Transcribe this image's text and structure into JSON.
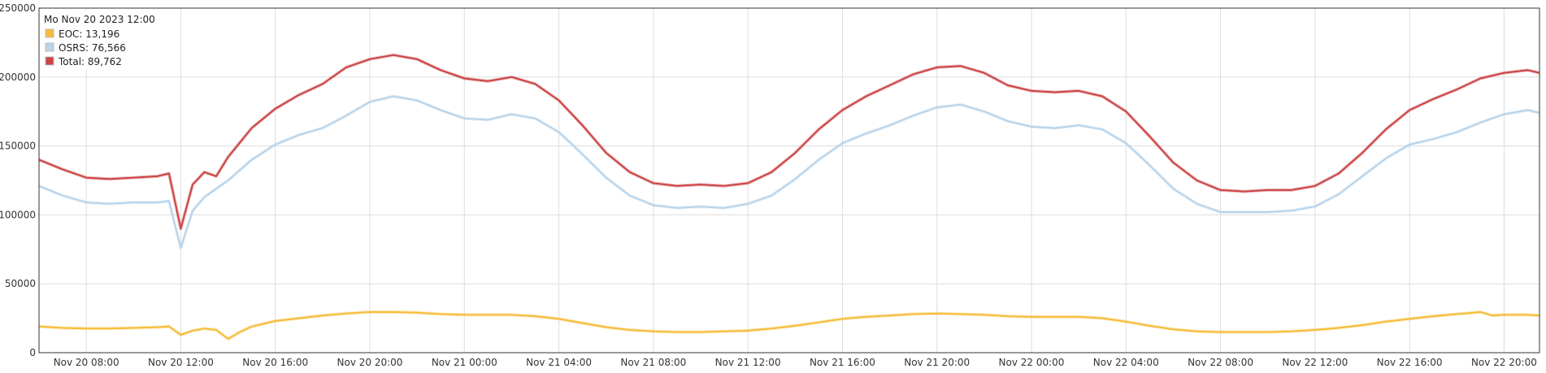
{
  "chart_data": {
    "type": "line",
    "title": "",
    "xlabel": "",
    "ylabel": "",
    "x_range": [
      "2023-11-20T06:00",
      "2023-11-22T21:30"
    ],
    "ylim": [
      0,
      250000
    ],
    "y_ticks": [
      0,
      50000,
      100000,
      150000,
      200000,
      250000
    ],
    "y_tick_labels": [
      "0",
      "50000",
      "100000",
      "150000",
      "200000",
      "250000"
    ],
    "x_ticks": [
      {
        "t": "2023-11-20T08:00",
        "label": "Nov 20 08:00"
      },
      {
        "t": "2023-11-20T12:00",
        "label": "Nov 20 12:00"
      },
      {
        "t": "2023-11-20T16:00",
        "label": "Nov 20 16:00"
      },
      {
        "t": "2023-11-20T20:00",
        "label": "Nov 20 20:00"
      },
      {
        "t": "2023-11-21T00:00",
        "label": "Nov 21 00:00"
      },
      {
        "t": "2023-11-21T04:00",
        "label": "Nov 21 04:00"
      },
      {
        "t": "2023-11-21T08:00",
        "label": "Nov 21 08:00"
      },
      {
        "t": "2023-11-21T12:00",
        "label": "Nov 21 12:00"
      },
      {
        "t": "2023-11-21T16:00",
        "label": "Nov 21 16:00"
      },
      {
        "t": "2023-11-21T20:00",
        "label": "Nov 21 20:00"
      },
      {
        "t": "2023-11-22T00:00",
        "label": "Nov 22 00:00"
      },
      {
        "t": "2023-11-22T04:00",
        "label": "Nov 22 04:00"
      },
      {
        "t": "2023-11-22T08:00",
        "label": "Nov 22 08:00"
      },
      {
        "t": "2023-11-22T12:00",
        "label": "Nov 22 12:00"
      },
      {
        "t": "2023-11-22T16:00",
        "label": "Nov 22 16:00"
      },
      {
        "t": "2023-11-22T20:00",
        "label": "Nov 22 20:00"
      }
    ],
    "grid": true,
    "legend": {
      "placement": "top-left",
      "header": "Mo Nov 20 2023 12:00",
      "entries": [
        {
          "label": "EOC: 13,196",
          "color": "#f5bd3b"
        },
        {
          "label": "OSRS: 76,566",
          "color": "#b8d4ea"
        },
        {
          "label": "Total: 89,762",
          "color": "#cc4444"
        }
      ]
    },
    "series": [
      {
        "key": "total",
        "color": "#cc4444",
        "points": [
          [
            "2023-11-20T06:00",
            140000
          ],
          [
            "2023-11-20T07:00",
            133000
          ],
          [
            "2023-11-20T08:00",
            127000
          ],
          [
            "2023-11-20T09:00",
            126000
          ],
          [
            "2023-11-20T10:00",
            127000
          ],
          [
            "2023-11-20T11:00",
            128000
          ],
          [
            "2023-11-20T11:30",
            130000
          ],
          [
            "2023-11-20T12:00",
            90000
          ],
          [
            "2023-11-20T12:30",
            122000
          ],
          [
            "2023-11-20T13:00",
            131000
          ],
          [
            "2023-11-20T13:30",
            128000
          ],
          [
            "2023-11-20T14:00",
            142000
          ],
          [
            "2023-11-20T15:00",
            163000
          ],
          [
            "2023-11-20T16:00",
            177000
          ],
          [
            "2023-11-20T17:00",
            187000
          ],
          [
            "2023-11-20T18:00",
            195000
          ],
          [
            "2023-11-20T19:00",
            207000
          ],
          [
            "2023-11-20T20:00",
            213000
          ],
          [
            "2023-11-20T21:00",
            216000
          ],
          [
            "2023-11-20T22:00",
            213000
          ],
          [
            "2023-11-20T23:00",
            205000
          ],
          [
            "2023-11-21T00:00",
            199000
          ],
          [
            "2023-11-21T01:00",
            197000
          ],
          [
            "2023-11-21T02:00",
            200000
          ],
          [
            "2023-11-21T03:00",
            195000
          ],
          [
            "2023-11-21T04:00",
            183000
          ],
          [
            "2023-11-21T05:00",
            165000
          ],
          [
            "2023-11-21T06:00",
            145000
          ],
          [
            "2023-11-21T07:00",
            131000
          ],
          [
            "2023-11-21T08:00",
            123000
          ],
          [
            "2023-11-21T09:00",
            121000
          ],
          [
            "2023-11-21T10:00",
            122000
          ],
          [
            "2023-11-21T11:00",
            121000
          ],
          [
            "2023-11-21T12:00",
            123000
          ],
          [
            "2023-11-21T13:00",
            131000
          ],
          [
            "2023-11-21T14:00",
            145000
          ],
          [
            "2023-11-21T15:00",
            162000
          ],
          [
            "2023-11-21T16:00",
            176000
          ],
          [
            "2023-11-21T17:00",
            186000
          ],
          [
            "2023-11-21T18:00",
            194000
          ],
          [
            "2023-11-21T19:00",
            202000
          ],
          [
            "2023-11-21T20:00",
            207000
          ],
          [
            "2023-11-21T21:00",
            208000
          ],
          [
            "2023-11-21T22:00",
            203000
          ],
          [
            "2023-11-21T23:00",
            194000
          ],
          [
            "2023-11-22T00:00",
            190000
          ],
          [
            "2023-11-22T01:00",
            189000
          ],
          [
            "2023-11-22T02:00",
            190000
          ],
          [
            "2023-11-22T03:00",
            186000
          ],
          [
            "2023-11-22T04:00",
            175000
          ],
          [
            "2023-11-22T05:00",
            157000
          ],
          [
            "2023-11-22T06:00",
            138000
          ],
          [
            "2023-11-22T07:00",
            125000
          ],
          [
            "2023-11-22T08:00",
            118000
          ],
          [
            "2023-11-22T09:00",
            117000
          ],
          [
            "2023-11-22T10:00",
            118000
          ],
          [
            "2023-11-22T11:00",
            118000
          ],
          [
            "2023-11-22T12:00",
            121000
          ],
          [
            "2023-11-22T13:00",
            130000
          ],
          [
            "2023-11-22T14:00",
            145000
          ],
          [
            "2023-11-22T15:00",
            162000
          ],
          [
            "2023-11-22T16:00",
            176000
          ],
          [
            "2023-11-22T17:00",
            184000
          ],
          [
            "2023-11-22T18:00",
            191000
          ],
          [
            "2023-11-22T19:00",
            199000
          ],
          [
            "2023-11-22T20:00",
            203000
          ],
          [
            "2023-11-22T21:00",
            205000
          ],
          [
            "2023-11-22T21:30",
            203000
          ]
        ]
      },
      {
        "key": "osrs",
        "color": "#b8d4ea",
        "points": [
          [
            "2023-11-20T06:00",
            121000
          ],
          [
            "2023-11-20T07:00",
            114000
          ],
          [
            "2023-11-20T08:00",
            109000
          ],
          [
            "2023-11-20T09:00",
            108000
          ],
          [
            "2023-11-20T10:00",
            109000
          ],
          [
            "2023-11-20T11:00",
            109000
          ],
          [
            "2023-11-20T11:30",
            110000
          ],
          [
            "2023-11-20T12:00",
            76000
          ],
          [
            "2023-11-20T12:30",
            103000
          ],
          [
            "2023-11-20T13:00",
            113000
          ],
          [
            "2023-11-20T14:00",
            125000
          ],
          [
            "2023-11-20T15:00",
            140000
          ],
          [
            "2023-11-20T16:00",
            151000
          ],
          [
            "2023-11-20T17:00",
            158000
          ],
          [
            "2023-11-20T18:00",
            163000
          ],
          [
            "2023-11-20T19:00",
            172000
          ],
          [
            "2023-11-20T20:00",
            182000
          ],
          [
            "2023-11-20T21:00",
            186000
          ],
          [
            "2023-11-20T22:00",
            183000
          ],
          [
            "2023-11-20T23:00",
            176000
          ],
          [
            "2023-11-21T00:00",
            170000
          ],
          [
            "2023-11-21T01:00",
            169000
          ],
          [
            "2023-11-21T02:00",
            173000
          ],
          [
            "2023-11-21T03:00",
            170000
          ],
          [
            "2023-11-21T04:00",
            160000
          ],
          [
            "2023-11-21T05:00",
            144000
          ],
          [
            "2023-11-21T06:00",
            127000
          ],
          [
            "2023-11-21T07:00",
            114000
          ],
          [
            "2023-11-21T08:00",
            107000
          ],
          [
            "2023-11-21T09:00",
            105000
          ],
          [
            "2023-11-21T10:00",
            106000
          ],
          [
            "2023-11-21T11:00",
            105000
          ],
          [
            "2023-11-21T12:00",
            108000
          ],
          [
            "2023-11-21T13:00",
            114000
          ],
          [
            "2023-11-21T14:00",
            126000
          ],
          [
            "2023-11-21T15:00",
            140000
          ],
          [
            "2023-11-21T16:00",
            152000
          ],
          [
            "2023-11-21T17:00",
            159000
          ],
          [
            "2023-11-21T18:00",
            165000
          ],
          [
            "2023-11-21T19:00",
            172000
          ],
          [
            "2023-11-21T20:00",
            178000
          ],
          [
            "2023-11-21T21:00",
            180000
          ],
          [
            "2023-11-21T22:00",
            175000
          ],
          [
            "2023-11-21T23:00",
            168000
          ],
          [
            "2023-11-22T00:00",
            164000
          ],
          [
            "2023-11-22T01:00",
            163000
          ],
          [
            "2023-11-22T02:00",
            165000
          ],
          [
            "2023-11-22T03:00",
            162000
          ],
          [
            "2023-11-22T04:00",
            152000
          ],
          [
            "2023-11-22T05:00",
            136000
          ],
          [
            "2023-11-22T06:00",
            119000
          ],
          [
            "2023-11-22T07:00",
            108000
          ],
          [
            "2023-11-22T08:00",
            102000
          ],
          [
            "2023-11-22T09:00",
            102000
          ],
          [
            "2023-11-22T10:00",
            102000
          ],
          [
            "2023-11-22T11:00",
            103000
          ],
          [
            "2023-11-22T12:00",
            106000
          ],
          [
            "2023-11-22T13:00",
            115000
          ],
          [
            "2023-11-22T14:00",
            128000
          ],
          [
            "2023-11-22T15:00",
            141000
          ],
          [
            "2023-11-22T16:00",
            151000
          ],
          [
            "2023-11-22T17:00",
            155000
          ],
          [
            "2023-11-22T18:00",
            160000
          ],
          [
            "2023-11-22T19:00",
            167000
          ],
          [
            "2023-11-22T20:00",
            173000
          ],
          [
            "2023-11-22T21:00",
            176000
          ],
          [
            "2023-11-22T21:30",
            174000
          ]
        ]
      },
      {
        "key": "eoc",
        "color": "#f5bd3b",
        "points": [
          [
            "2023-11-20T06:00",
            19000
          ],
          [
            "2023-11-20T07:00",
            18000
          ],
          [
            "2023-11-20T08:00",
            17500
          ],
          [
            "2023-11-20T09:00",
            17500
          ],
          [
            "2023-11-20T10:00",
            18000
          ],
          [
            "2023-11-20T11:00",
            18500
          ],
          [
            "2023-11-20T11:30",
            19000
          ],
          [
            "2023-11-20T12:00",
            13000
          ],
          [
            "2023-11-20T12:30",
            16000
          ],
          [
            "2023-11-20T13:00",
            17500
          ],
          [
            "2023-11-20T13:30",
            16500
          ],
          [
            "2023-11-20T14:00",
            10000
          ],
          [
            "2023-11-20T14:30",
            15000
          ],
          [
            "2023-11-20T15:00",
            19000
          ],
          [
            "2023-11-20T16:00",
            23000
          ],
          [
            "2023-11-20T17:00",
            25000
          ],
          [
            "2023-11-20T18:00",
            27000
          ],
          [
            "2023-11-20T19:00",
            28500
          ],
          [
            "2023-11-20T20:00",
            29500
          ],
          [
            "2023-11-20T21:00",
            29500
          ],
          [
            "2023-11-20T22:00",
            29000
          ],
          [
            "2023-11-20T23:00",
            28000
          ],
          [
            "2023-11-21T00:00",
            27500
          ],
          [
            "2023-11-21T01:00",
            27500
          ],
          [
            "2023-11-21T02:00",
            27500
          ],
          [
            "2023-11-21T03:00",
            26500
          ],
          [
            "2023-11-21T04:00",
            24500
          ],
          [
            "2023-11-21T05:00",
            21500
          ],
          [
            "2023-11-21T06:00",
            18500
          ],
          [
            "2023-11-21T07:00",
            16500
          ],
          [
            "2023-11-21T08:00",
            15500
          ],
          [
            "2023-11-21T09:00",
            15000
          ],
          [
            "2023-11-21T10:00",
            15000
          ],
          [
            "2023-11-21T11:00",
            15500
          ],
          [
            "2023-11-21T12:00",
            16000
          ],
          [
            "2023-11-21T13:00",
            17500
          ],
          [
            "2023-11-21T14:00",
            19500
          ],
          [
            "2023-11-21T15:00",
            22000
          ],
          [
            "2023-11-21T16:00",
            24500
          ],
          [
            "2023-11-21T17:00",
            26000
          ],
          [
            "2023-11-21T18:00",
            27000
          ],
          [
            "2023-11-21T19:00",
            28000
          ],
          [
            "2023-11-21T20:00",
            28500
          ],
          [
            "2023-11-21T21:00",
            28000
          ],
          [
            "2023-11-21T22:00",
            27500
          ],
          [
            "2023-11-21T23:00",
            26500
          ],
          [
            "2023-11-22T00:00",
            26000
          ],
          [
            "2023-11-22T01:00",
            26000
          ],
          [
            "2023-11-22T02:00",
            26000
          ],
          [
            "2023-11-22T03:00",
            25000
          ],
          [
            "2023-11-22T04:00",
            22500
          ],
          [
            "2023-11-22T05:00",
            19500
          ],
          [
            "2023-11-22T06:00",
            17000
          ],
          [
            "2023-11-22T07:00",
            15500
          ],
          [
            "2023-11-22T08:00",
            15000
          ],
          [
            "2023-11-22T09:00",
            15000
          ],
          [
            "2023-11-22T10:00",
            15000
          ],
          [
            "2023-11-22T11:00",
            15500
          ],
          [
            "2023-11-22T12:00",
            16500
          ],
          [
            "2023-11-22T13:00",
            18000
          ],
          [
            "2023-11-22T14:00",
            20000
          ],
          [
            "2023-11-22T15:00",
            22500
          ],
          [
            "2023-11-22T16:00",
            24500
          ],
          [
            "2023-11-22T17:00",
            26500
          ],
          [
            "2023-11-22T18:00",
            28000
          ],
          [
            "2023-11-22T19:00",
            29500
          ],
          [
            "2023-11-22T19:30",
            27000
          ],
          [
            "2023-11-22T20:00",
            27500
          ],
          [
            "2023-11-22T21:00",
            27500
          ],
          [
            "2023-11-22T21:30",
            27000
          ]
        ]
      }
    ]
  }
}
